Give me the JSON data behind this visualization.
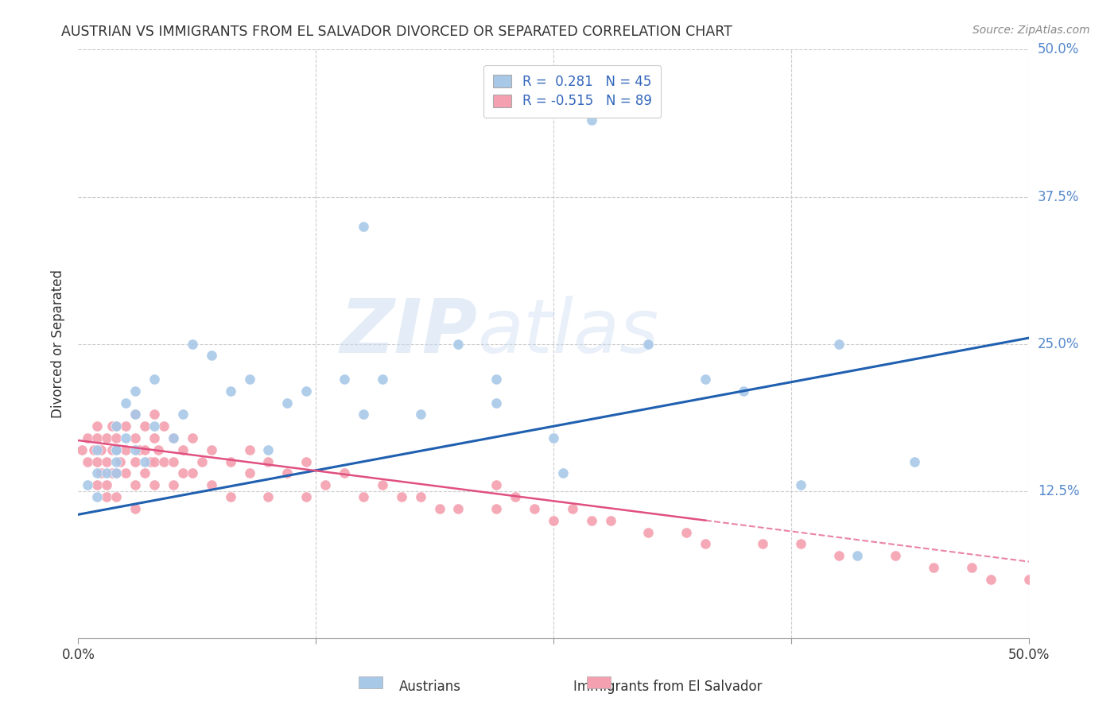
{
  "title": "AUSTRIAN VS IMMIGRANTS FROM EL SALVADOR DIVORCED OR SEPARATED CORRELATION CHART",
  "source": "Source: ZipAtlas.com",
  "ylabel": "Divorced or Separated",
  "legend_label_1": "Austrians",
  "legend_label_2": "Immigrants from El Salvador",
  "r1": 0.281,
  "n1": 45,
  "r2": -0.515,
  "n2": 89,
  "color_blue": "#a8c8e8",
  "color_pink": "#f4a0b0",
  "line_blue": "#2060b0",
  "line_pink": "#e05080",
  "watermark_zip": "ZIP",
  "watermark_atlas": "atlas",
  "xlim": [
    0.0,
    0.5
  ],
  "ylim": [
    0.0,
    0.5
  ],
  "blue_line_start_y": 0.105,
  "blue_line_end_y": 0.255,
  "pink_line_start_y": 0.168,
  "pink_line_end_y": 0.065,
  "blue_x": [
    0.005,
    0.01,
    0.01,
    0.01,
    0.015,
    0.02,
    0.02,
    0.02,
    0.02,
    0.02,
    0.025,
    0.025,
    0.03,
    0.03,
    0.03,
    0.035,
    0.04,
    0.04,
    0.05,
    0.055,
    0.06,
    0.07,
    0.08,
    0.09,
    0.1,
    0.11,
    0.12,
    0.14,
    0.15,
    0.15,
    0.16,
    0.18,
    0.2,
    0.22,
    0.22,
    0.25,
    0.255,
    0.27,
    0.3,
    0.33,
    0.35,
    0.38,
    0.4,
    0.41,
    0.44
  ],
  "blue_y": [
    0.13,
    0.12,
    0.14,
    0.16,
    0.14,
    0.15,
    0.16,
    0.14,
    0.18,
    0.16,
    0.2,
    0.17,
    0.16,
    0.19,
    0.21,
    0.15,
    0.18,
    0.22,
    0.17,
    0.19,
    0.25,
    0.24,
    0.21,
    0.22,
    0.16,
    0.2,
    0.21,
    0.22,
    0.19,
    0.35,
    0.22,
    0.19,
    0.25,
    0.22,
    0.2,
    0.17,
    0.14,
    0.44,
    0.25,
    0.22,
    0.21,
    0.13,
    0.25,
    0.07,
    0.15
  ],
  "pink_x": [
    0.002,
    0.005,
    0.005,
    0.008,
    0.01,
    0.01,
    0.01,
    0.01,
    0.012,
    0.012,
    0.015,
    0.015,
    0.015,
    0.015,
    0.018,
    0.018,
    0.018,
    0.02,
    0.02,
    0.02,
    0.02,
    0.02,
    0.022,
    0.025,
    0.025,
    0.025,
    0.03,
    0.03,
    0.03,
    0.03,
    0.03,
    0.032,
    0.035,
    0.035,
    0.035,
    0.038,
    0.04,
    0.04,
    0.04,
    0.04,
    0.042,
    0.045,
    0.045,
    0.05,
    0.05,
    0.05,
    0.055,
    0.055,
    0.06,
    0.06,
    0.065,
    0.07,
    0.07,
    0.08,
    0.08,
    0.09,
    0.09,
    0.1,
    0.1,
    0.11,
    0.12,
    0.12,
    0.13,
    0.14,
    0.15,
    0.16,
    0.17,
    0.18,
    0.19,
    0.2,
    0.22,
    0.22,
    0.23,
    0.24,
    0.25,
    0.26,
    0.27,
    0.28,
    0.3,
    0.32,
    0.33,
    0.36,
    0.38,
    0.4,
    0.43,
    0.45,
    0.47,
    0.48,
    0.5
  ],
  "pink_y": [
    0.16,
    0.17,
    0.15,
    0.16,
    0.17,
    0.15,
    0.13,
    0.18,
    0.16,
    0.14,
    0.17,
    0.15,
    0.13,
    0.12,
    0.16,
    0.18,
    0.14,
    0.17,
    0.16,
    0.14,
    0.18,
    0.12,
    0.15,
    0.18,
    0.16,
    0.14,
    0.17,
    0.15,
    0.19,
    0.13,
    0.11,
    0.16,
    0.18,
    0.16,
    0.14,
    0.15,
    0.19,
    0.17,
    0.15,
    0.13,
    0.16,
    0.18,
    0.15,
    0.17,
    0.15,
    0.13,
    0.16,
    0.14,
    0.17,
    0.14,
    0.15,
    0.16,
    0.13,
    0.15,
    0.12,
    0.16,
    0.14,
    0.15,
    0.12,
    0.14,
    0.15,
    0.12,
    0.13,
    0.14,
    0.12,
    0.13,
    0.12,
    0.12,
    0.11,
    0.11,
    0.13,
    0.11,
    0.12,
    0.11,
    0.1,
    0.11,
    0.1,
    0.1,
    0.09,
    0.09,
    0.08,
    0.08,
    0.08,
    0.07,
    0.07,
    0.06,
    0.06,
    0.05,
    0.05
  ]
}
